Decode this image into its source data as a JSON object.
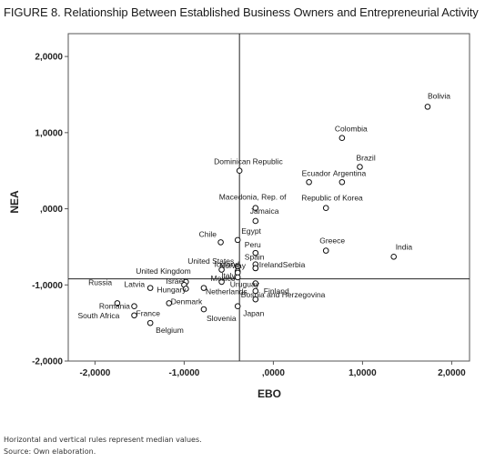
{
  "figure": {
    "title": "FIGURE 8. Relationship Between Established Business Owners and Entrepreneurial Activity",
    "note": "Horizontal and vertical rules represent median values.",
    "source": "Source: Own elaboration."
  },
  "chart_data": {
    "type": "scatter",
    "xlabel": "EBO",
    "ylabel": "NEA",
    "xlim": [
      -2.3,
      2.2
    ],
    "ylim": [
      -2.0,
      2.3
    ],
    "x_ticks": [
      -2,
      -1,
      0,
      1,
      2
    ],
    "y_ticks": [
      -2,
      -1,
      0,
      1,
      2
    ],
    "x_tick_labels": [
      "-2,0000",
      "-1,0000",
      ",0000",
      "1,0000",
      "2,0000"
    ],
    "y_tick_labels": [
      "-2,0000",
      "-1,0000",
      ",0000",
      "1,0000",
      "2,0000"
    ],
    "reference_lines": {
      "vertical_x": -0.38,
      "horizontal_y": -0.92
    },
    "grid": false,
    "marker": "hollow-circle",
    "points": [
      {
        "label": "Bolivia",
        "x": 1.73,
        "y": 1.34
      },
      {
        "label": "Colombia",
        "x": 0.77,
        "y": 0.93
      },
      {
        "label": "Brazil",
        "x": 0.97,
        "y": 0.55
      },
      {
        "label": "Argentina",
        "x": 0.77,
        "y": 0.35
      },
      {
        "label": "Ecuador",
        "x": 0.4,
        "y": 0.35
      },
      {
        "label": "Republic of Korea",
        "x": 0.59,
        "y": 0.01
      },
      {
        "label": "Dominican Republic",
        "x": -0.38,
        "y": 0.5
      },
      {
        "label": "Macedonia, Rep. of",
        "x": -0.2,
        "y": 0.01
      },
      {
        "label": "Jamaica",
        "x": -0.2,
        "y": -0.16
      },
      {
        "label": "Egypt",
        "x": -0.4,
        "y": -0.41
      },
      {
        "label": "Chile",
        "x": -0.59,
        "y": -0.44
      },
      {
        "label": "Greece",
        "x": 0.59,
        "y": -0.55
      },
      {
        "label": "India",
        "x": 1.35,
        "y": -0.63
      },
      {
        "label": "Peru",
        "x": -0.2,
        "y": -0.58
      },
      {
        "label": "Spain",
        "x": -0.2,
        "y": -0.73
      },
      {
        "label": "United States",
        "x": -0.4,
        "y": -0.76
      },
      {
        "label": "Ireland",
        "x": -0.2,
        "y": -0.78
      },
      {
        "label": "Serbia",
        "x": -0.2,
        "y": -0.78
      },
      {
        "label": "Iceland",
        "x": -0.58,
        "y": -0.8
      },
      {
        "label": "Norway",
        "x": -0.4,
        "y": -0.82
      },
      {
        "label": "United Kingdom",
        "x": -0.4,
        "y": -0.84
      },
      {
        "label": "Italy",
        "x": -0.4,
        "y": -0.9
      },
      {
        "label": "Uruguay",
        "x": -0.2,
        "y": -0.98
      },
      {
        "label": "Mexico",
        "x": -0.58,
        "y": -0.96
      },
      {
        "label": "Israel",
        "x": -0.98,
        "y": -0.96
      },
      {
        "label": "Latvia",
        "x": -1.0,
        "y": -1.0
      },
      {
        "label": "Hungary",
        "x": -0.98,
        "y": -1.05
      },
      {
        "label": "Netherlands",
        "x": -0.78,
        "y": -1.04
      },
      {
        "label": "Finland",
        "x": -0.2,
        "y": -1.08
      },
      {
        "label": "Russia",
        "x": -1.38,
        "y": -1.04
      },
      {
        "label": "Bosnia and Herzegovina",
        "x": -0.2,
        "y": -1.19
      },
      {
        "label": "Denmark",
        "x": -1.17,
        "y": -1.24
      },
      {
        "label": "Romania",
        "x": -1.75,
        "y": -1.24
      },
      {
        "label": "France",
        "x": -1.56,
        "y": -1.28
      },
      {
        "label": "Japan",
        "x": -0.4,
        "y": -1.28
      },
      {
        "label": "Slovenia",
        "x": -0.78,
        "y": -1.32
      },
      {
        "label": "South Africa",
        "x": -1.56,
        "y": -1.4
      },
      {
        "label": "Belgium",
        "x": -1.38,
        "y": -1.5
      }
    ]
  }
}
